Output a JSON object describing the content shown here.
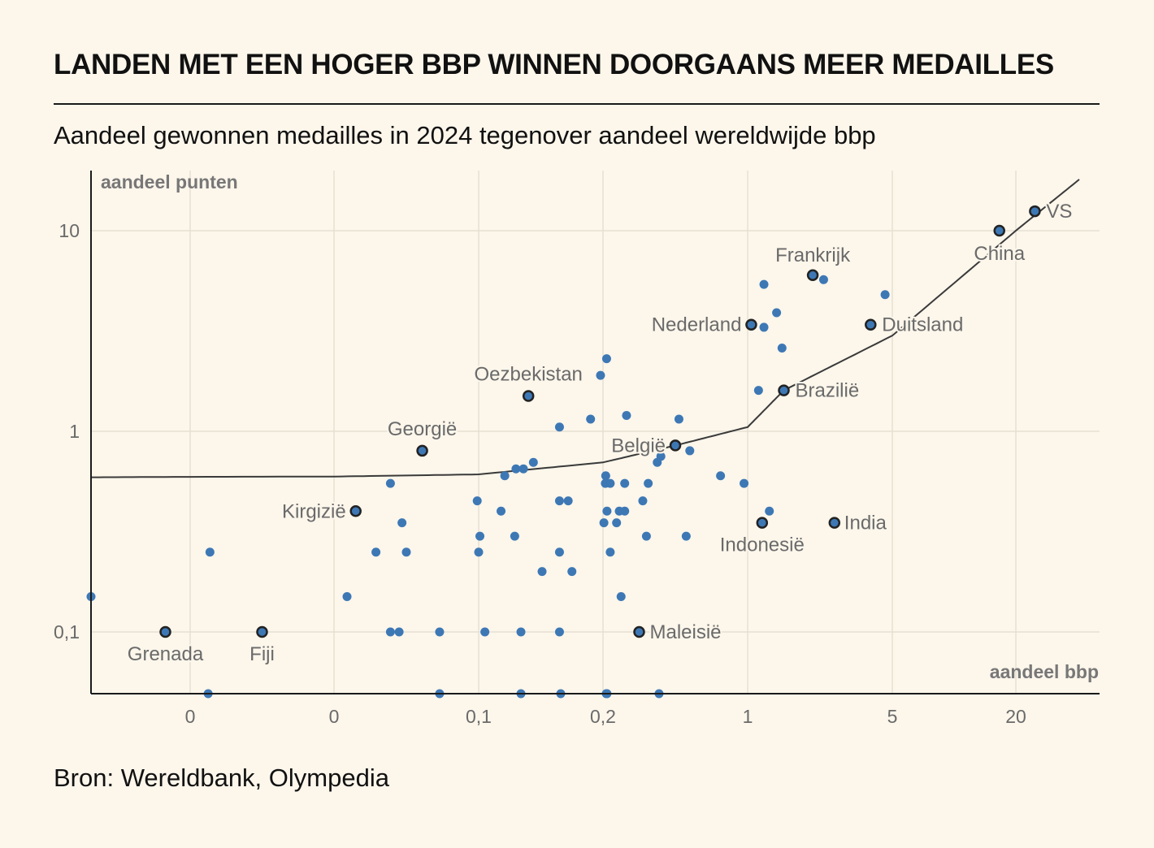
{
  "header": {
    "title": "LANDEN MET EEN HOGER BBP WINNEN DOORGAANS MEER MEDAILLES",
    "subtitle": "Aandeel gewonnen medailles in 2024 tegenover aandeel wereldwijde bbp"
  },
  "footer": {
    "source": "Bron: Wereldbank, Olympedia"
  },
  "colors": {
    "background": "#fcf6eb",
    "point": "#3d78b5",
    "trend": "#3a3a3a",
    "grid": "#e6e0d3"
  },
  "chart_data": {
    "type": "scatter",
    "title": "LANDEN MET EEN HOGER BBP WINNEN DOORGAANS MEER MEDAILLES",
    "subtitle": "Aandeel gewonnen medailles in 2024 tegenover aandeel wereldwijde bbp",
    "xlabel": "aandeel bbp",
    "ylabel": "aandeel punten",
    "x_scale": "custom-nonlinear",
    "y_scale": "log",
    "x_ticks": [
      {
        "value": -0.08,
        "label": "0"
      },
      {
        "value": 0,
        "label": "0"
      },
      {
        "value": 0.1,
        "label": "0,1"
      },
      {
        "value": 0.2,
        "label": "0,2"
      },
      {
        "value": 1,
        "label": "1"
      },
      {
        "value": 5,
        "label": "5"
      },
      {
        "value": 20,
        "label": "20"
      }
    ],
    "y_ticks": [
      {
        "value": 10,
        "label": "10"
      },
      {
        "value": 1,
        "label": "1"
      },
      {
        "value": 0.1,
        "label": "0,1"
      }
    ],
    "grid": true,
    "highlighted": [
      {
        "name": "VS",
        "x": 26,
        "y": 12.5
      },
      {
        "name": "China",
        "x": 18,
        "y": 10
      },
      {
        "name": "Frankrijk",
        "x": 2.8,
        "y": 6
      },
      {
        "name": "Duitsland",
        "x": 4.4,
        "y": 3.4
      },
      {
        "name": "Nederland",
        "x": 1.1,
        "y": 3.4
      },
      {
        "name": "Brazilië",
        "x": 2.0,
        "y": 1.6
      },
      {
        "name": "Oezbekistan",
        "x": 0.14,
        "y": 1.5
      },
      {
        "name": "België",
        "x": 0.6,
        "y": 0.85
      },
      {
        "name": "Georgië",
        "x": 0.061,
        "y": 0.8
      },
      {
        "name": "Kirgizië",
        "x": 0.015,
        "y": 0.4
      },
      {
        "name": "Indonesië",
        "x": 1.4,
        "y": 0.35
      },
      {
        "name": "India",
        "x": 3.4,
        "y": 0.35
      },
      {
        "name": "Maleisië",
        "x": 0.4,
        "y": 0.1
      },
      {
        "name": "Grenada",
        "x": -0.11,
        "y": 0.1
      },
      {
        "name": "Fiji",
        "x": -0.04,
        "y": 0.1
      }
    ],
    "points": [
      {
        "x": -0.2,
        "y": 0.15
      },
      {
        "x": -0.069,
        "y": 0.25
      },
      {
        "x": 0.009,
        "y": 0.15
      },
      {
        "x": 0.029,
        "y": 0.25
      },
      {
        "x": 0.039,
        "y": 0.55
      },
      {
        "x": 0.039,
        "y": 0.1
      },
      {
        "x": 0.045,
        "y": 0.1
      },
      {
        "x": 0.047,
        "y": 0.35
      },
      {
        "x": 0.05,
        "y": 0.25
      },
      {
        "x": 0.073,
        "y": 0.1
      },
      {
        "x": 0.099,
        "y": 0.45
      },
      {
        "x": 0.101,
        "y": 0.3
      },
      {
        "x": 0.1,
        "y": 0.25
      },
      {
        "x": 0.105,
        "y": 0.1
      },
      {
        "x": 0.118,
        "y": 0.4
      },
      {
        "x": 0.121,
        "y": 0.6
      },
      {
        "x": 0.13,
        "y": 0.65
      },
      {
        "x": 0.129,
        "y": 0.3
      },
      {
        "x": 0.134,
        "y": 0.1
      },
      {
        "x": 0.136,
        "y": 0.65
      },
      {
        "x": 0.144,
        "y": 0.7
      },
      {
        "x": 0.151,
        "y": 0.2
      },
      {
        "x": 0.165,
        "y": 1.05
      },
      {
        "x": 0.165,
        "y": 0.45
      },
      {
        "x": 0.165,
        "y": 0.25
      },
      {
        "x": 0.165,
        "y": 0.1
      },
      {
        "x": 0.172,
        "y": 0.45
      },
      {
        "x": 0.175,
        "y": 0.2
      },
      {
        "x": 0.19,
        "y": 1.15
      },
      {
        "x": 0.198,
        "y": 1.9
      },
      {
        "x": 0.205,
        "y": 0.35
      },
      {
        "x": 0.213,
        "y": 0.55
      },
      {
        "x": 0.215,
        "y": 0.6
      },
      {
        "x": 0.22,
        "y": 2.3
      },
      {
        "x": 0.222,
        "y": 0.4
      },
      {
        "x": 0.24,
        "y": 0.55
      },
      {
        "x": 0.24,
        "y": 0.25
      },
      {
        "x": 0.275,
        "y": 0.35
      },
      {
        "x": 0.29,
        "y": 0.4
      },
      {
        "x": 0.3,
        "y": 0.15
      },
      {
        "x": 0.32,
        "y": 0.4
      },
      {
        "x": 0.32,
        "y": 0.55
      },
      {
        "x": 0.33,
        "y": 1.2
      },
      {
        "x": 0.42,
        "y": 0.45
      },
      {
        "x": 0.44,
        "y": 0.3
      },
      {
        "x": 0.45,
        "y": 0.55
      },
      {
        "x": 0.5,
        "y": 0.7
      },
      {
        "x": 0.52,
        "y": 0.75
      },
      {
        "x": 0.62,
        "y": 1.15
      },
      {
        "x": 0.66,
        "y": 0.3
      },
      {
        "x": 0.68,
        "y": 0.8
      },
      {
        "x": 0.85,
        "y": 0.6
      },
      {
        "x": 0.98,
        "y": 0.55
      },
      {
        "x": 1.3,
        "y": 1.6
      },
      {
        "x": 1.45,
        "y": 3.3
      },
      {
        "x": 1.45,
        "y": 5.4
      },
      {
        "x": 1.6,
        "y": 0.4
      },
      {
        "x": 1.8,
        "y": 3.9
      },
      {
        "x": 1.95,
        "y": 2.6
      },
      {
        "x": 3.1,
        "y": 5.7
      },
      {
        "x": 4.8,
        "y": 4.8
      }
    ],
    "points_below_ylim": [
      {
        "x": -0.07
      },
      {
        "x": 0.073
      },
      {
        "x": 0.134
      },
      {
        "x": 0.166
      },
      {
        "x": 0.218
      },
      {
        "x": 0.222
      },
      {
        "x": 0.51
      }
    ],
    "trendline": [
      {
        "x": -0.2,
        "y": 0.59
      },
      {
        "x": 0,
        "y": 0.595
      },
      {
        "x": 0.1,
        "y": 0.61
      },
      {
        "x": 0.2,
        "y": 0.7
      },
      {
        "x": 0.6,
        "y": 0.85
      },
      {
        "x": 1,
        "y": 1.05
      },
      {
        "x": 2,
        "y": 1.6
      },
      {
        "x": 5,
        "y": 3.0
      },
      {
        "x": 20,
        "y": 10
      },
      {
        "x": 40,
        "y": 18
      }
    ],
    "xlim": [
      -0.2,
      40
    ],
    "ylim": [
      0.05,
      18
    ]
  }
}
